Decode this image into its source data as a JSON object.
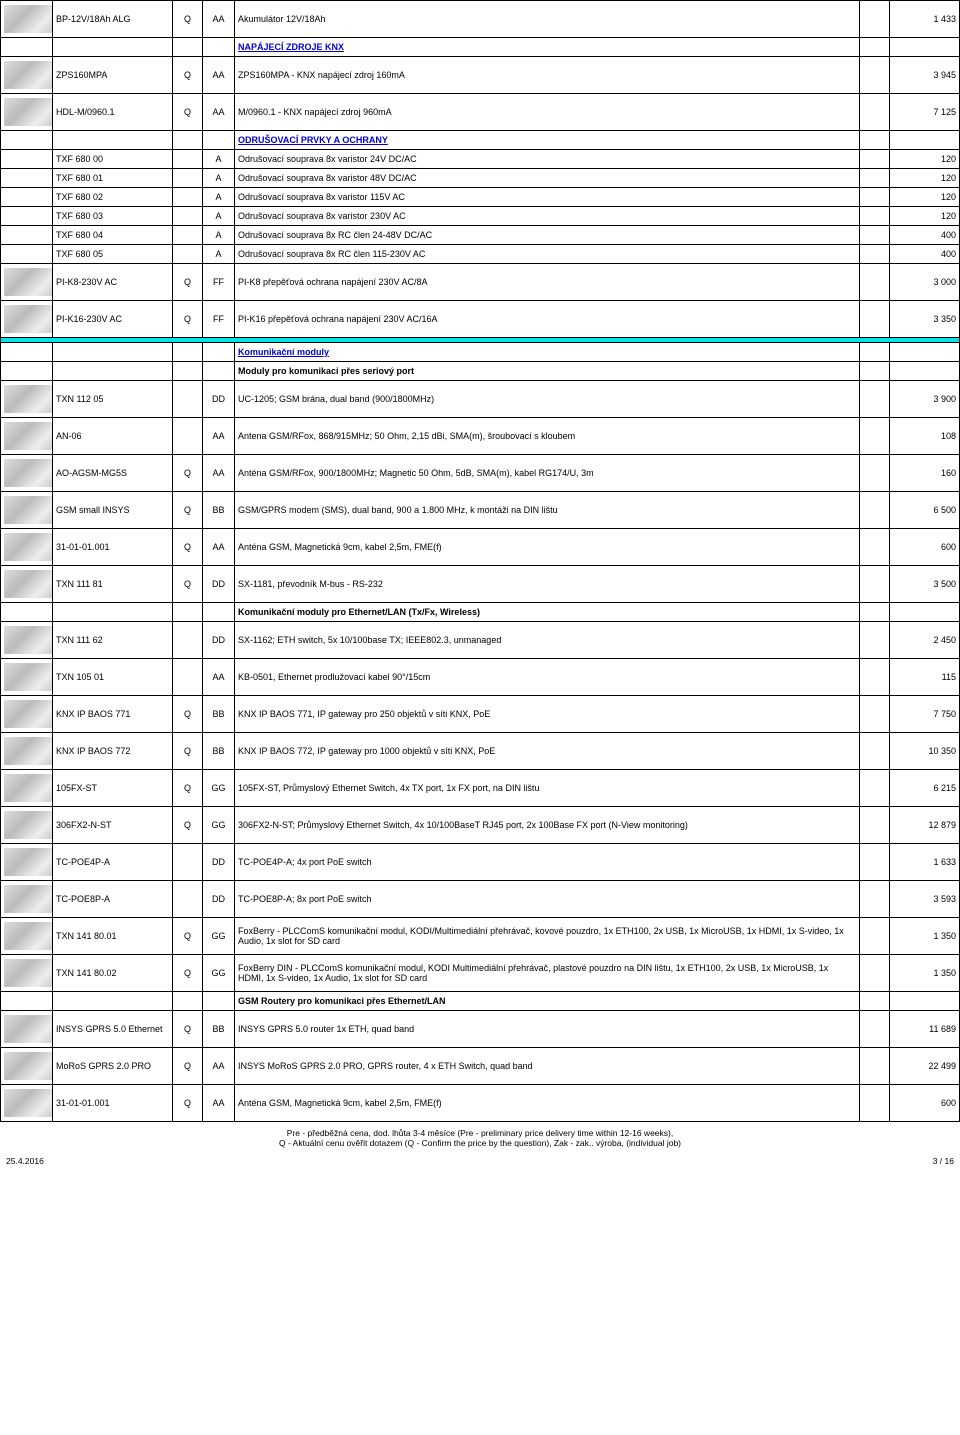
{
  "rows": [
    {
      "type": "item",
      "img": true,
      "code": "BP-12V/18Ah ALG",
      "q": "Q",
      "cat": "AA",
      "desc": "Akumulátor 12V/18Ah",
      "price": "1 433"
    },
    {
      "type": "header",
      "desc": "NAPÁJECÍ ZDROJE KNX"
    },
    {
      "type": "item",
      "img": true,
      "code": "ZPS160MPA",
      "q": "Q",
      "cat": "AA",
      "desc": "ZPS160MPA - KNX napájecí zdroj 160mA",
      "price": "3 945"
    },
    {
      "type": "item",
      "img": true,
      "code": "HDL-M/0960.1",
      "q": "Q",
      "cat": "AA",
      "desc": "M/0960.1 - KNX napájecí zdroj 960mA",
      "price": "7 125"
    },
    {
      "type": "header",
      "desc": "ODRUŠOVACÍ PRVKY A OCHRANY"
    },
    {
      "type": "thin",
      "code": "TXF 680 00",
      "cat": "A",
      "desc": "Odrušovací souprava 8x varistor 24V DC/AC",
      "price": "120"
    },
    {
      "type": "thin",
      "code": "TXF 680 01",
      "cat": "A",
      "desc": "Odrušovací souprava 8x varistor 48V DC/AC",
      "price": "120"
    },
    {
      "type": "thin",
      "code": "TXF 680 02",
      "cat": "A",
      "desc": "Odrušovací souprava 8x varistor 115V AC",
      "price": "120"
    },
    {
      "type": "thin",
      "code": "TXF 680 03",
      "cat": "A",
      "desc": "Odrušovací souprava 8x varistor 230V AC",
      "price": "120"
    },
    {
      "type": "thin",
      "code": "TXF 680 04",
      "cat": "A",
      "desc": "Odrušovací souprava 8x RC člen 24-48V DC/AC",
      "price": "400"
    },
    {
      "type": "thin",
      "code": "TXF 680 05",
      "cat": "A",
      "desc": "Odrušovací souprava 8x RC člen 115-230V AC",
      "price": "400"
    },
    {
      "type": "item",
      "img": true,
      "code": "PI-K8-230V AC",
      "q": "Q",
      "cat": "FF",
      "desc": "PI-K8 přepěťová ochrana napájení 230V AC/8A",
      "price": "3 000"
    },
    {
      "type": "item",
      "img": true,
      "code": "PI-K16-230V AC",
      "q": "Q",
      "cat": "FF",
      "desc": "PI-K16 přepěťová ochrana napájení 230V AC/16A",
      "price": "3 350"
    },
    {
      "type": "sep"
    },
    {
      "type": "header",
      "desc": "Komunikační moduly"
    },
    {
      "type": "subheader",
      "desc": "Moduly pro komunikaci přes seriový port"
    },
    {
      "type": "item",
      "img": true,
      "code": "TXN 112 05",
      "q": "",
      "cat": "DD",
      "desc": "UC-1205; GSM brána, dual band (900/1800MHz)",
      "price": "3 900"
    },
    {
      "type": "item",
      "img": true,
      "code": "AN-06",
      "q": "",
      "cat": "AA",
      "desc": "Antena GSM/RFox, 868/915MHz; 50 Ohm, 2,15 dBi, SMA(m), šroubovací s kloubem",
      "price": "108"
    },
    {
      "type": "item",
      "img": true,
      "code": "AO-AGSM-MG5S",
      "q": "Q",
      "cat": "AA",
      "desc": "Anténa GSM/RFox, 900/1800MHz; Magnetic 50 Ohm, 5dB, SMA(m), kabel RG174/U, 3m",
      "price": "160"
    },
    {
      "type": "item",
      "img": true,
      "code": "GSM small INSYS",
      "q": "Q",
      "cat": "BB",
      "desc": "GSM/GPRS modem (SMS), dual band, 900 a 1.800 MHz, k montáži na DIN lištu",
      "price": "6 500"
    },
    {
      "type": "item",
      "img": true,
      "code": "31-01-01.001",
      "q": "Q",
      "cat": "AA",
      "desc": "Anténa GSM, Magnetická 9cm, kabel 2,5m, FME(f)",
      "price": "600"
    },
    {
      "type": "item",
      "img": true,
      "code": "TXN 111 81",
      "q": "Q",
      "cat": "DD",
      "desc": "SX-1181, převodník M-bus - RS-232",
      "price": "3 500"
    },
    {
      "type": "subheader",
      "desc": "Komunikační moduly pro Ethernet/LAN (Tx/Fx, Wireless)"
    },
    {
      "type": "item",
      "img": true,
      "code": "TXN 111 62",
      "q": "",
      "cat": "DD",
      "desc": "SX-1162; ETH switch, 5x 10/100base TX; IEEE802.3, unmanaged",
      "price": "2 450"
    },
    {
      "type": "item",
      "img": true,
      "code": "TXN 105 01",
      "q": "",
      "cat": "AA",
      "desc": "KB-0501, Ethernet prodlužovací kabel 90°/15cm",
      "price": "115"
    },
    {
      "type": "item",
      "img": true,
      "code": "KNX IP BAOS 771",
      "q": "Q",
      "cat": "BB",
      "desc": "KNX IP BAOS 771, IP gateway pro 250 objektů v síti KNX, PoE",
      "price": "7 750"
    },
    {
      "type": "item",
      "img": true,
      "code": "KNX IP BAOS 772",
      "q": "Q",
      "cat": "BB",
      "desc": "KNX IP BAOS 772, IP gateway pro 1000 objektů v síti KNX, PoE",
      "price": "10 350"
    },
    {
      "type": "item",
      "img": true,
      "code": "105FX-ST",
      "q": "Q",
      "cat": "GG",
      "desc": "105FX-ST, Průmyslový Ethernet Switch, 4x TX port, 1x FX port, na DIN lištu",
      "price": "6 215"
    },
    {
      "type": "item",
      "img": true,
      "code": "306FX2-N-ST",
      "q": "Q",
      "cat": "GG",
      "desc": "306FX2-N-ST; Průmyslový Ethernet Switch, 4x 10/100BaseT RJ45 port, 2x 100Base FX port (N-View monitoring)",
      "price": "12 879"
    },
    {
      "type": "item",
      "img": true,
      "code": "TC-POE4P-A",
      "q": "",
      "cat": "DD",
      "desc": "TC-POE4P-A; 4x port PoE switch",
      "price": "1 633"
    },
    {
      "type": "item",
      "img": true,
      "code": "TC-POE8P-A",
      "q": "",
      "cat": "DD",
      "desc": "TC-POE8P-A; 8x port PoE switch",
      "price": "3 593"
    },
    {
      "type": "item",
      "img": true,
      "code": "TXN 141 80.01",
      "q": "Q",
      "cat": "GG",
      "desc": "FoxBerry - PLCComS komunikační modul, KODI/Multimediální přehrávač, kovové pouzdro, 1x ETH100, 2x USB, 1x MicroUSB, 1x HDMI, 1x S-video, 1x Audio, 1x slot for SD card",
      "price": "1 350"
    },
    {
      "type": "item",
      "img": true,
      "code": "TXN 141 80.02",
      "q": "Q",
      "cat": "GG",
      "desc": "FoxBerry DIN - PLCComS komunikační modul, KODI Multimediální přehrávač, plastové pouzdro na DIN lištu, 1x ETH100, 2x USB, 1x MicroUSB, 1x HDMI, 1x S-video, 1x Audio, 1x slot for SD card",
      "price": "1 350"
    },
    {
      "type": "subheader",
      "desc": "GSM Routery pro komunikaci přes Ethernet/LAN"
    },
    {
      "type": "item",
      "img": true,
      "code": "INSYS GPRS 5.0 Ethernet",
      "q": "Q",
      "cat": "BB",
      "desc": "INSYS GPRS 5.0 router 1x ETH, quad band",
      "price": "11 689"
    },
    {
      "type": "item",
      "img": true,
      "code": "MoRoS GPRS 2.0 PRO",
      "q": "Q",
      "cat": "AA",
      "desc": "INSYS MoRoS GPRS 2.0 PRO, GPRS router, 4 x ETH Switch, quad band",
      "price": "22 499"
    },
    {
      "type": "item",
      "img": true,
      "code": "31-01-01.001",
      "q": "Q",
      "cat": "AA",
      "desc": "Anténa GSM, Magnetická 9cm, kabel 2,5m, FME(f)",
      "price": "600"
    }
  ],
  "footer": {
    "date": "25.4.2016",
    "note_line1": "Pre - předběžná cena, dod. lhůta 3-4 měsíce (Pre - preliminary price delivery time within 12-16 weeks),",
    "note_line2": "Q - Aktuální cenu ověřit dotazem (Q - Confirm the price by the question), Zak - zak.. výroba, (individual job)",
    "page": "3 / 16"
  }
}
